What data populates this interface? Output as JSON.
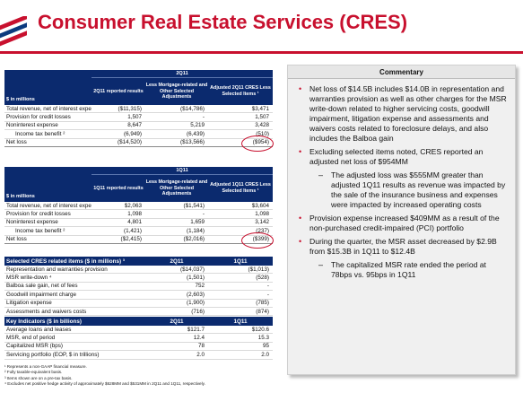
{
  "title": "Consumer Real Estate Services (CRES)",
  "colors": {
    "accent": "#c8102e",
    "header_navy": "#0b2a6e"
  },
  "table1": {
    "period": "2Q11",
    "label_header": "$ in millions",
    "cols": [
      "2Q11 reported results",
      "Less Mortgage-related and Other Selected Adjustments",
      "Adjusted 2Q11 CRES Less Selected Items ¹"
    ],
    "rows": [
      {
        "label": "Total revenue, net of interest expense ²",
        "v": [
          "($11,315)",
          "($14,786)",
          "$3,471"
        ]
      },
      {
        "label": "Provision for credit losses",
        "v": [
          "1,507",
          "-",
          "1,507"
        ]
      },
      {
        "label": "Noninterest expense",
        "v": [
          "8,647",
          "5,219",
          "3,428"
        ]
      },
      {
        "label": "Income tax benefit ²",
        "v": [
          "(6,949)",
          "(6,439)",
          "(510)"
        ],
        "indent": true
      },
      {
        "label": "Net loss",
        "v": [
          "($14,520)",
          "($13,566)",
          "($954)"
        ],
        "total": true
      }
    ]
  },
  "table2": {
    "period": "1Q11",
    "label_header": "$ in millions",
    "cols": [
      "1Q11 reported results",
      "Less Mortgage-related and Other Selected Adjustments",
      "Adjusted 1Q11 CRES Less Selected Items ¹"
    ],
    "rows": [
      {
        "label": "Total revenue, net of interest expense ²",
        "v": [
          "$2,063",
          "($1,541)",
          "$3,604"
        ]
      },
      {
        "label": "Provision for credit losses",
        "v": [
          "1,098",
          "-",
          "1,098"
        ]
      },
      {
        "label": "Noninterest expense",
        "v": [
          "4,801",
          "1,659",
          "3,142"
        ]
      },
      {
        "label": "Income tax benefit ²",
        "v": [
          "(1,421)",
          "(1,184)",
          "(237)"
        ],
        "indent": true
      },
      {
        "label": "Net loss",
        "v": [
          "($2,415)",
          "($2,016)",
          "($399)"
        ],
        "total": true
      }
    ]
  },
  "table3": {
    "header": [
      "Selected CRES related items ($ in millions) ³",
      "2Q11",
      "1Q11"
    ],
    "rows": [
      {
        "label": "Representation and warranties provision",
        "v": [
          "($14,037)",
          "($1,013)"
        ]
      },
      {
        "label": "MSR write-down ⁴",
        "v": [
          "(1,501)",
          "(528)"
        ]
      },
      {
        "label": "Balboa sale gain, net of fees",
        "v": [
          "752",
          "-"
        ]
      },
      {
        "label": "Goodwill impairment charge",
        "v": [
          "(2,603)",
          "-"
        ]
      },
      {
        "label": "Litigation expense",
        "v": [
          "(1,900)",
          "(785)"
        ]
      },
      {
        "label": "Assessments and waivers costs",
        "v": [
          "(716)",
          "(874)"
        ]
      }
    ]
  },
  "table4": {
    "header": [
      "Key Indicators ($ in billions)",
      "2Q11",
      "1Q11"
    ],
    "rows": [
      {
        "label": "Average loans and leases",
        "v": [
          "$121.7",
          "$120.6"
        ]
      },
      {
        "label": "MSR, end of period",
        "v": [
          "12.4",
          "15.3"
        ]
      },
      {
        "label": "Capitalized MSR (bps)",
        "v": [
          "78",
          "95"
        ]
      },
      {
        "label": "Servicing portfolio (EOP, $ in trillions)",
        "v": [
          "2.0",
          "2.0"
        ]
      }
    ]
  },
  "footnotes": [
    "¹ Represents a non-GAAP financial measure.",
    "² Fully taxable-equivalent basis.",
    "³ Items shown are on a pre-tax basis.",
    "⁴ Excludes net positive hedge activity of approximately $628MM and $531MM in 2Q11 and 1Q11, respectively."
  ],
  "commentary": {
    "title": "Commentary",
    "items": [
      {
        "text": "Net loss of $14.5B includes $14.0B in representation and warranties provision as well as other charges for the MSR write-down related to higher servicing costs, goodwill impairment, litigation expense and assessments and waivers costs related to foreclosure delays, and also includes the Balboa gain",
        "level": 1
      },
      {
        "text": "Excluding selected items noted, CRES reported an adjusted net loss of $954MM",
        "level": 1
      },
      {
        "text": "The adjusted loss was $555MM greater than adjusted 1Q11 results as revenue was impacted by the sale of the insurance business and expenses were impacted by increased operating costs",
        "level": 2
      },
      {
        "text": "Provision expense increased $409MM as a result of the non-purchased credit-impaired (PCI) portfolio",
        "level": 1
      },
      {
        "text": "During the quarter, the MSR asset decreased by $2.9B from $15.3B in 1Q11 to $12.4B",
        "level": 1
      },
      {
        "text": "The capitalized MSR rate ended the period at 78bps vs. 95bps in 1Q11",
        "level": 2
      }
    ]
  }
}
